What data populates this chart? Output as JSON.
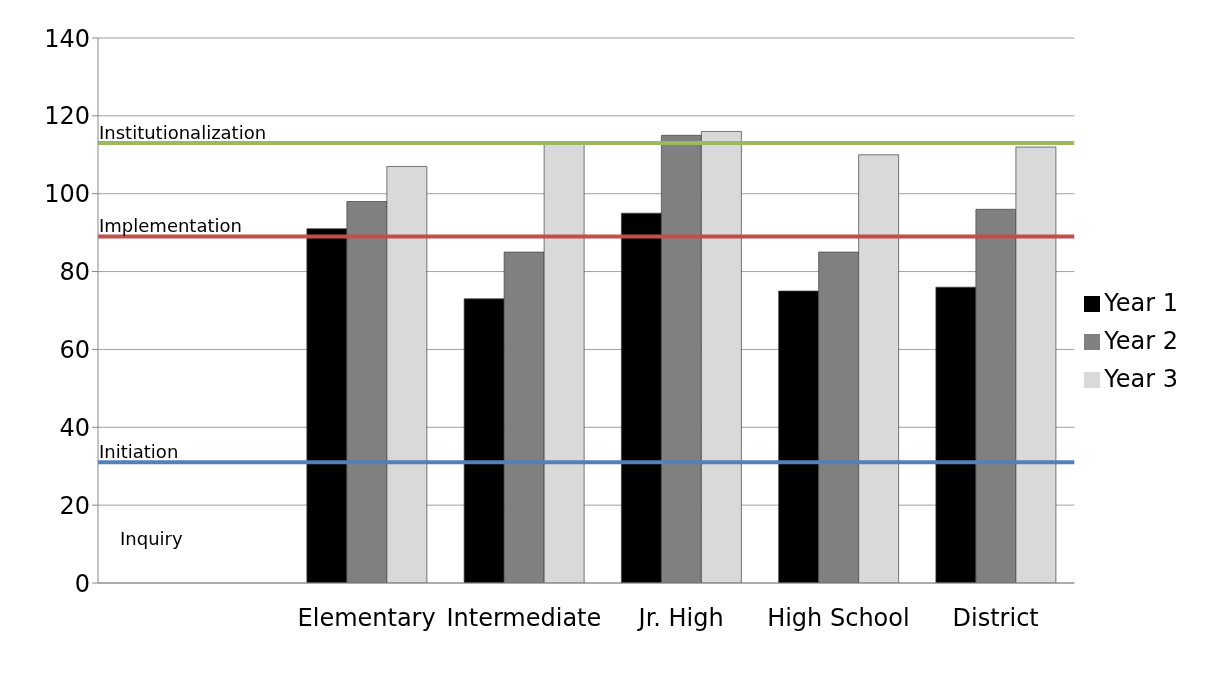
{
  "chart_data": {
    "type": "bar",
    "categories": [
      "Elementary",
      "Intermediate",
      "Jr. High",
      "High School",
      "District"
    ],
    "series": [
      {
        "name": "Year 1",
        "color": "#000000",
        "values": [
          91,
          73,
          95,
          75,
          76
        ]
      },
      {
        "name": "Year 2",
        "color": "#808080",
        "values": [
          98,
          85,
          115,
          85,
          96
        ]
      },
      {
        "name": "Year 3",
        "color": "#d9d9d9",
        "values": [
          107,
          113,
          116,
          110,
          112
        ]
      }
    ],
    "ylim": [
      0,
      140
    ],
    "yticks": [
      0,
      20,
      40,
      60,
      80,
      100,
      120,
      140
    ],
    "grid": "y",
    "legend": "right",
    "ref_lines": [
      {
        "axis": "y",
        "value": 113,
        "label": "Institutionalization",
        "color": "#9bbb59"
      },
      {
        "axis": "y",
        "value": 89,
        "label": "Implementation",
        "color": "#c0504d"
      },
      {
        "axis": "y",
        "value": 31,
        "label": "Initiation",
        "color": "#4f81bd"
      }
    ],
    "annotations": [
      "Inquiry"
    ]
  }
}
